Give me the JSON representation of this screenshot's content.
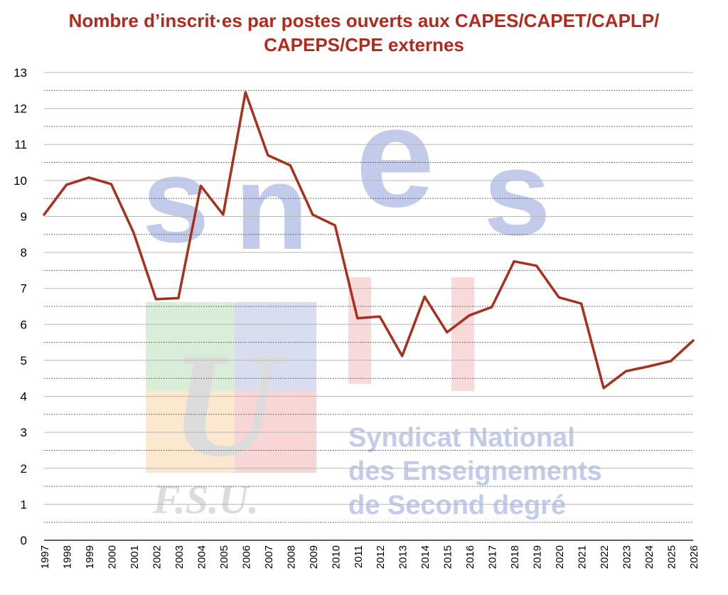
{
  "watermark": {
    "logo_letters": "snes",
    "logo_sub": "F.S.U.",
    "org_lines": [
      "Syndicat National",
      "des Enseignements",
      "de Second degré"
    ],
    "colors": {
      "s1": "#c7cdea",
      "n": "#cfe8cf",
      "e": "#f6c9c9",
      "s2": "#fbe3bf",
      "u": "#c9c9c9"
    }
  },
  "chart_data": {
    "type": "line",
    "title_lines": [
      "Nombre d’inscrit·es par postes ouverts aux CAPES/CAPET/CAPLP/",
      "CAPEPS/CPE externes"
    ],
    "xlabel": "",
    "ylabel": "",
    "ylim": [
      0,
      13
    ],
    "yticks": [
      "0",
      "1",
      "2",
      "3",
      "4",
      "5",
      "6",
      "7",
      "8",
      "9",
      "10",
      "11",
      "12",
      "13"
    ],
    "grid": true,
    "line_color": "#a8301f",
    "categories": [
      "1997",
      "1998",
      "1999",
      "2000",
      "2001",
      "2002",
      "2003",
      "2004",
      "2005",
      "2006",
      "2007",
      "2008",
      "2009",
      "2010",
      "2011",
      "2012",
      "2013",
      "2014",
      "2015",
      "2016",
      "2017",
      "2018",
      "2019",
      "2020",
      "2021",
      "2022",
      "2023",
      "2024",
      "2025",
      "2026"
    ],
    "values": [
      9.05,
      9.88,
      10.08,
      9.9,
      8.55,
      6.7,
      6.73,
      9.85,
      9.05,
      12.45,
      10.7,
      10.42,
      9.05,
      8.75,
      6.17,
      6.22,
      5.12,
      6.77,
      5.78,
      6.25,
      6.48,
      7.75,
      7.63,
      6.75,
      6.58,
      4.23,
      4.7,
      4.83,
      4.98,
      5.55
    ]
  }
}
